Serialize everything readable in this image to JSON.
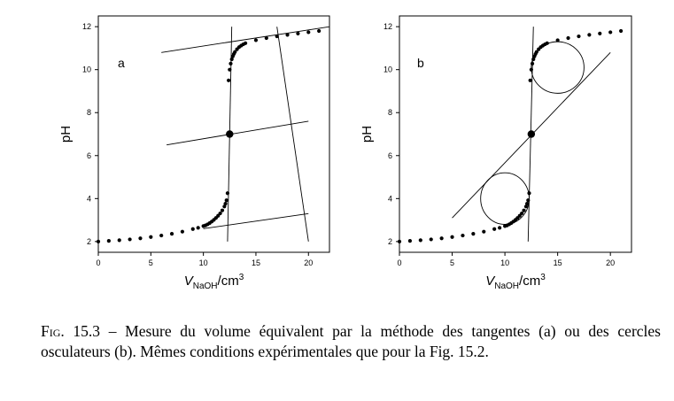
{
  "chart_data": [
    {
      "type": "scatter",
      "panel_label": "a",
      "xlabel": {
        "main": "V",
        "sub": "NaOH",
        "unit": "/cm",
        "sup": "3"
      },
      "ylabel": "pH",
      "xlim": [
        0,
        22
      ],
      "ylim": [
        1.5,
        12.5
      ],
      "xticks": [
        0,
        5,
        10,
        15,
        20
      ],
      "yticks": [
        2,
        4,
        6,
        8,
        10,
        12
      ],
      "series": [
        {
          "x": [
            0,
            1,
            2,
            3,
            4,
            5,
            6,
            7,
            8,
            9,
            9.5,
            10,
            10.2,
            10.4,
            10.6,
            10.8,
            11,
            11.2,
            11.4,
            11.6,
            11.8,
            12,
            12.1,
            12.2,
            12.3,
            12.4,
            12.5,
            12.6,
            12.7,
            12.8,
            12.9,
            13,
            13.2,
            13.4,
            13.6,
            13.8,
            14,
            15,
            16,
            17,
            18,
            19,
            20,
            21
          ],
          "y": [
            2.0,
            2.03,
            2.06,
            2.1,
            2.15,
            2.21,
            2.28,
            2.36,
            2.46,
            2.58,
            2.64,
            2.72,
            2.75,
            2.8,
            2.86,
            2.93,
            3.01,
            3.1,
            3.2,
            3.31,
            3.45,
            3.63,
            3.76,
            3.92,
            4.25,
            9.5,
            10.0,
            10.28,
            10.48,
            10.62,
            10.73,
            10.82,
            10.95,
            11.05,
            11.12,
            11.18,
            11.23,
            11.37,
            11.47,
            11.55,
            11.62,
            11.68,
            11.74,
            11.8
          ]
        }
      ],
      "equivalence_point": {
        "x": 12.5,
        "y": 7.0
      },
      "construction_lines": [
        {
          "x1": 6,
          "y1": 10.8,
          "x2": 22,
          "y2": 12.0
        },
        {
          "x1": 6.5,
          "y1": 6.5,
          "x2": 20,
          "y2": 7.6
        },
        {
          "x1": 10,
          "y1": 2.6,
          "x2": 20,
          "y2": 3.3
        },
        {
          "x1": 12.3,
          "y1": 2.0,
          "x2": 12.7,
          "y2": 12.0
        },
        {
          "x1": 17,
          "y1": 12.0,
          "x2": 20,
          "y2": 2.0
        }
      ],
      "circles": []
    },
    {
      "type": "scatter",
      "panel_label": "b",
      "xlabel": {
        "main": "V",
        "sub": "NaOH",
        "unit": "/cm",
        "sup": "3"
      },
      "ylabel": "pH",
      "xlim": [
        0,
        22
      ],
      "ylim": [
        1.5,
        12.5
      ],
      "xticks": [
        0,
        5,
        10,
        15,
        20
      ],
      "yticks": [
        2,
        4,
        6,
        8,
        10,
        12
      ],
      "series": [
        {
          "x": [
            0,
            1,
            2,
            3,
            4,
            5,
            6,
            7,
            8,
            9,
            9.5,
            10,
            10.2,
            10.4,
            10.6,
            10.8,
            11,
            11.2,
            11.4,
            11.6,
            11.8,
            12,
            12.1,
            12.2,
            12.3,
            12.4,
            12.5,
            12.6,
            12.7,
            12.8,
            12.9,
            13,
            13.2,
            13.4,
            13.6,
            13.8,
            14,
            15,
            16,
            17,
            18,
            19,
            20,
            21
          ],
          "y": [
            2.0,
            2.03,
            2.06,
            2.1,
            2.15,
            2.21,
            2.28,
            2.36,
            2.46,
            2.58,
            2.64,
            2.72,
            2.75,
            2.8,
            2.86,
            2.93,
            3.01,
            3.1,
            3.2,
            3.31,
            3.45,
            3.63,
            3.76,
            3.92,
            4.25,
            9.5,
            10.0,
            10.28,
            10.48,
            10.62,
            10.73,
            10.82,
            10.95,
            11.05,
            11.12,
            11.18,
            11.23,
            11.37,
            11.47,
            11.55,
            11.62,
            11.68,
            11.74,
            11.8
          ]
        }
      ],
      "equivalence_point": {
        "x": 12.5,
        "y": 7.0
      },
      "construction_lines": [
        {
          "x1": 12.2,
          "y1": 2.0,
          "x2": 12.7,
          "y2": 12.0
        },
        {
          "x1": 5,
          "y1": 3.1,
          "x2": 20,
          "y2": 10.8
        }
      ],
      "circles": [
        {
          "cx": 10,
          "cy": 4.0,
          "r_x": 2.3,
          "r_y": 1.2
        },
        {
          "cx": 15,
          "cy": 10.1,
          "r_x": 2.5,
          "r_y": 1.2
        }
      ]
    }
  ],
  "caption": {
    "fig_label": "Fig. 15.3",
    "text": " – Mesure du volume équivalent par la méthode des tangentes (a) ou des cercles osculateurs (b). Mêmes conditions expérimentales que pour la Fig. 15.2."
  }
}
